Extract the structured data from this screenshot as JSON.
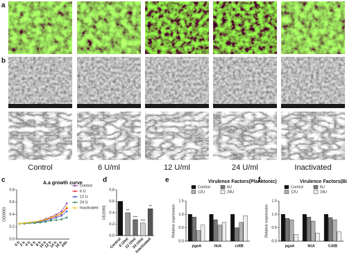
{
  "panel_labels": [
    "a",
    "b",
    "c",
    "d",
    "e",
    "f"
  ],
  "conditions": [
    "Control",
    "6 U/ml",
    "12 U/ml",
    "24 U/ml",
    "Inactivated"
  ],
  "chart_data": [
    {
      "type": "line",
      "title": "A.a growth curve",
      "y_label": "OD(600)",
      "categories": [
        "0 h",
        "2 h",
        "4 h",
        "6 h",
        "8 h",
        "10 h",
        "12 h",
        "14 h",
        "16 h",
        "24h"
      ],
      "ylim": [
        0,
        0.8
      ],
      "yticks": [
        {
          "value": 0,
          "label": "0.0"
        },
        0.2,
        0.4,
        0.6,
        0.8
      ],
      "series": [
        {
          "name": "Control",
          "color": "#8e44ad",
          "values": [
            0.25,
            0.26,
            0.27,
            0.28,
            0.3,
            0.33,
            0.36,
            0.4,
            0.45,
            0.58
          ]
        },
        {
          "name": "6 U",
          "color": "#e8303a",
          "values": [
            0.25,
            0.26,
            0.27,
            0.28,
            0.29,
            0.31,
            0.34,
            0.37,
            0.41,
            0.5
          ]
        },
        {
          "name": "12 U",
          "color": "#3b5bdb",
          "values": [
            0.25,
            0.26,
            0.26,
            0.27,
            0.28,
            0.3,
            0.32,
            0.35,
            0.38,
            0.45
          ]
        },
        {
          "name": "24 U",
          "color": "#2e8b57",
          "values": [
            0.25,
            0.25,
            0.26,
            0.26,
            0.27,
            0.28,
            0.3,
            0.31,
            0.32,
            0.35
          ]
        },
        {
          "name": "Inactivated",
          "color": "#f0c419",
          "values": [
            0.25,
            0.26,
            0.27,
            0.28,
            0.3,
            0.32,
            0.35,
            0.38,
            0.42,
            0.52
          ]
        }
      ]
    },
    {
      "type": "bar",
      "y_label": "OD(590)",
      "categories": [
        "Control",
        "6 U/ml",
        "12 U/ml",
        "24 U/ml",
        "Inactivated"
      ],
      "values": [
        0.6,
        0.4,
        0.28,
        0.22,
        0.47
      ],
      "colors": [
        "#111111",
        "#9a9a9a",
        "#6e6e6e",
        "#d0d0d0",
        "#555555"
      ],
      "significance": [
        null,
        "**",
        "***",
        "***",
        "**"
      ],
      "ylim": [
        0,
        0.8
      ],
      "yticks": [
        {
          "value": 0,
          "label": "0.0"
        },
        0.2,
        0.4,
        0.6,
        0.8
      ]
    },
    {
      "type": "bar",
      "title": "Virulence Factors(Planktonic)",
      "y_label": "Relative expression",
      "categories": [
        "pgaA",
        "lktA",
        "cdtB"
      ],
      "ylim": [
        0,
        1.5
      ],
      "yticks": [
        {
          "value": 0,
          "label": "0.0"
        },
        0.5,
        {
          "value": 1,
          "label": "1.0"
        },
        1.5
      ],
      "series": [
        {
          "name": "Control",
          "color": "#111111",
          "values": [
            1,
            1,
            1
          ]
        },
        {
          "name": "6U",
          "color": "#777777",
          "values": [
            0.9,
            0.8,
            0.5
          ]
        },
        {
          "name": "12U",
          "color": "#b0b0b0",
          "values": [
            0.4,
            0.6,
            0.7
          ]
        },
        {
          "name": "24U",
          "color": "#eeeeee",
          "values": [
            0.6,
            0.7,
            0.95
          ]
        }
      ]
    },
    {
      "type": "bar",
      "title": "Virulence Factors(Biofilm)",
      "y_label": "Relative expression",
      "categories": [
        "pgaA",
        "lktA",
        "CdtB"
      ],
      "ylim": [
        0,
        1.5
      ],
      "yticks": [
        {
          "value": 0,
          "label": "0.0"
        },
        0.5,
        {
          "value": 1,
          "label": "1.0"
        },
        1.5
      ],
      "series": [
        {
          "name": "Control",
          "color": "#111111",
          "values": [
            1,
            1,
            1
          ]
        },
        {
          "name": "6U",
          "color": "#777777",
          "values": [
            0.85,
            0.9,
            0.88
          ]
        },
        {
          "name": "12U",
          "color": "#b0b0b0",
          "values": [
            0.8,
            0.75,
            0.8
          ]
        },
        {
          "name": "24U",
          "color": "#eeeeee",
          "values": [
            0.25,
            0.3,
            0.35
          ]
        }
      ]
    }
  ]
}
